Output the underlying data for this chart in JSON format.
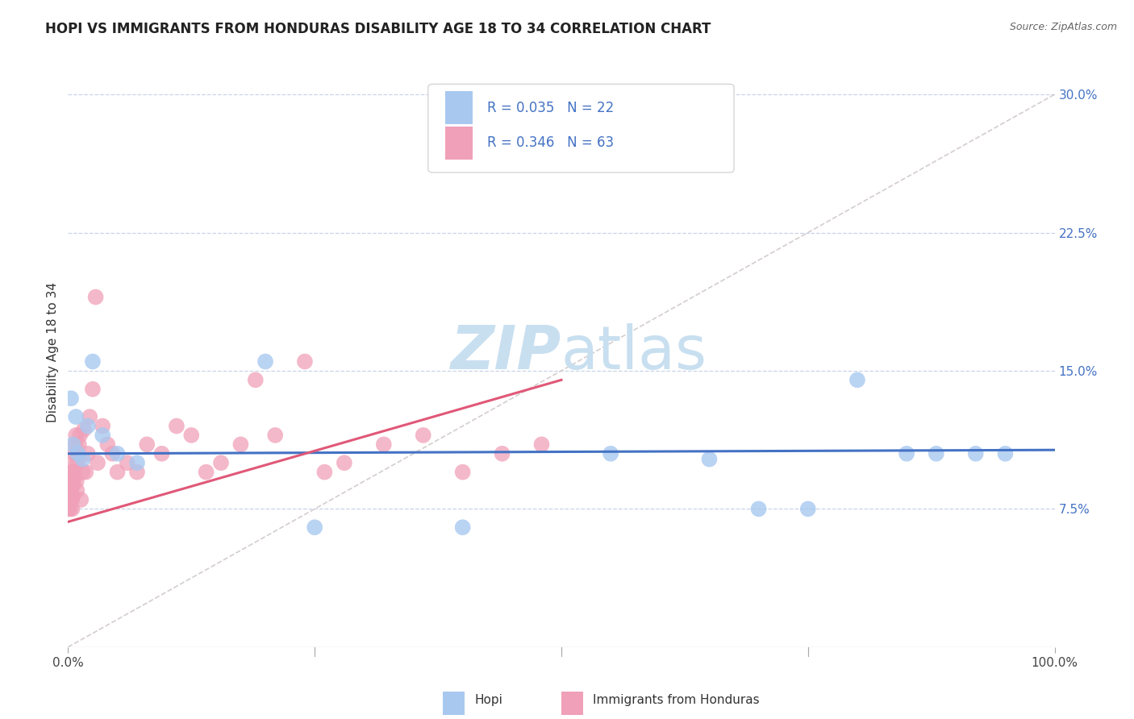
{
  "title": "HOPI VS IMMIGRANTS FROM HONDURAS DISABILITY AGE 18 TO 34 CORRELATION CHART",
  "source": "Source: ZipAtlas.com",
  "ylabel": "Disability Age 18 to 34",
  "legend_r1": "R = 0.035",
  "legend_n1": "N = 22",
  "legend_r2": "R = 0.346",
  "legend_n2": "N = 63",
  "legend_label1": "Hopi",
  "legend_label2": "Immigrants from Honduras",
  "hopi_color": "#a8c8f0",
  "honduras_color": "#f0a0b8",
  "hopi_line_color": "#4472c4",
  "honduras_line_color": "#e05878",
  "diagonal_color": "#d0c8c8",
  "grid_color": "#c8d4e8",
  "background_color": "#ffffff",
  "watermark_color": "#c8dff0",
  "xlim": [
    0,
    100
  ],
  "ylim": [
    0,
    32
  ],
  "yticks": [
    7.5,
    15.0,
    22.5,
    30.0
  ],
  "xticks": [
    0,
    25,
    50,
    75,
    100
  ],
  "title_fontsize": 12,
  "hopi_x": [
    0.3,
    0.5,
    0.8,
    1.0,
    1.5,
    2.0,
    2.5,
    3.5,
    5.0,
    7.0,
    20.0,
    25.0,
    40.0,
    55.0,
    65.0,
    70.0,
    75.0,
    80.0,
    85.0,
    88.0,
    92.0,
    95.0
  ],
  "hopi_y": [
    13.5,
    11.0,
    12.5,
    10.5,
    10.2,
    12.0,
    15.5,
    11.5,
    10.5,
    10.0,
    15.5,
    6.5,
    6.5,
    10.5,
    10.2,
    7.5,
    7.5,
    14.5,
    10.5,
    10.5,
    10.5,
    10.5
  ],
  "honduras_x": [
    0.05,
    0.08,
    0.1,
    0.12,
    0.15,
    0.18,
    0.2,
    0.22,
    0.25,
    0.28,
    0.3,
    0.33,
    0.35,
    0.38,
    0.4,
    0.42,
    0.45,
    0.48,
    0.5,
    0.55,
    0.6,
    0.65,
    0.7,
    0.75,
    0.8,
    0.85,
    0.9,
    0.95,
    1.0,
    1.1,
    1.2,
    1.3,
    1.5,
    1.6,
    1.8,
    2.0,
    2.2,
    2.5,
    3.0,
    3.5,
    4.0,
    4.5,
    5.0,
    6.0,
    7.0,
    8.0,
    9.5,
    11.0,
    12.5,
    14.0,
    15.5,
    17.5,
    19.0,
    21.0,
    24.0,
    26.0,
    28.0,
    32.0,
    36.0,
    40.0,
    44.0,
    48.0,
    2.8
  ],
  "honduras_y": [
    7.5,
    8.0,
    7.8,
    8.5,
    9.0,
    8.2,
    8.0,
    7.5,
    8.8,
    9.2,
    8.5,
    9.0,
    8.8,
    9.5,
    8.0,
    7.5,
    9.0,
    8.2,
    8.8,
    9.5,
    10.0,
    9.2,
    10.5,
    11.0,
    11.5,
    9.0,
    8.5,
    10.0,
    10.5,
    11.0,
    11.5,
    8.0,
    9.5,
    11.8,
    9.5,
    10.5,
    12.5,
    14.0,
    10.0,
    12.0,
    11.0,
    10.5,
    9.5,
    10.0,
    9.5,
    11.0,
    10.5,
    12.0,
    11.5,
    9.5,
    10.0,
    11.0,
    14.5,
    11.5,
    15.5,
    9.5,
    10.0,
    11.0,
    11.5,
    9.5,
    10.5,
    11.0,
    19.0
  ],
  "hopi_trend_intercept": 10.5,
  "hopi_trend_slope": 0.002,
  "honduras_trend_x0": 0.0,
  "honduras_trend_y0": 6.8,
  "honduras_trend_x1": 50.0,
  "honduras_trend_y1": 14.5
}
